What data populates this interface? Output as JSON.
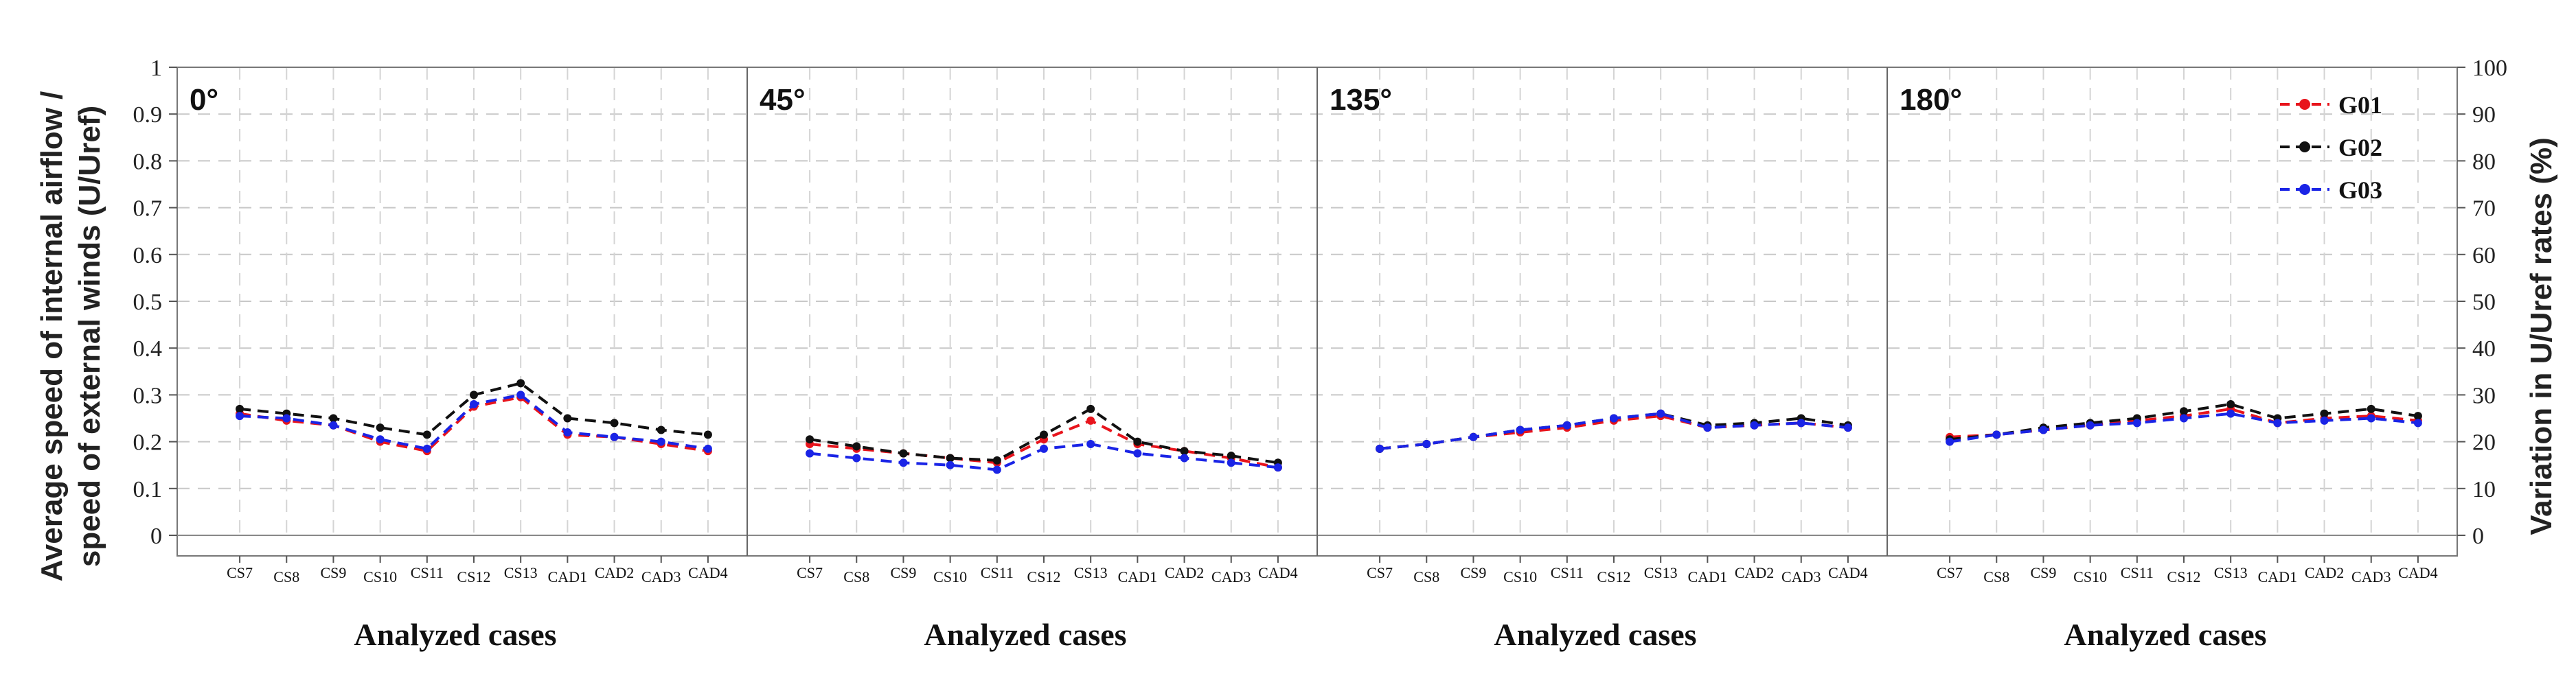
{
  "chart_data": {
    "type": "line",
    "title": "",
    "ylabel_left_line1": "Average speed of internal airflow /",
    "ylabel_left_line2": "speed of external winds  (U/Uref)",
    "ylabel_right": "Variation in U/Uref rates (%)",
    "ylim_left": [
      0,
      1
    ],
    "left_ticks": [
      "0",
      "0.1",
      "0.2",
      "0.3",
      "0.4",
      "0.5",
      "0.6",
      "0.7",
      "0.8",
      "0.9",
      "1"
    ],
    "ylim_right": [
      0,
      100
    ],
    "right_ticks": [
      "0",
      "10",
      "20",
      "30",
      "40",
      "50",
      "60",
      "70",
      "80",
      "90",
      "100"
    ],
    "categories": [
      "CS7",
      "CS8",
      "CS9",
      "CS10",
      "CS11",
      "CS12",
      "CS13",
      "CAD1",
      "CAD2",
      "CAD3",
      "CAD4"
    ],
    "legend": [
      {
        "name": "G01",
        "color": "#e8141c"
      },
      {
        "name": "G02",
        "color": "#111111"
      },
      {
        "name": "G03",
        "color": "#1a24e6"
      }
    ],
    "panels": [
      {
        "angle": "0°",
        "xlabel": "Analyzed cases",
        "series": [
          {
            "name": "G01",
            "values": [
              0.26,
              0.245,
              0.235,
              0.2,
              0.18,
              0.275,
              0.295,
              0.215,
              0.21,
              0.195,
              0.18
            ]
          },
          {
            "name": "G02",
            "values": [
              0.27,
              0.26,
              0.25,
              0.23,
              0.215,
              0.3,
              0.325,
              0.25,
              0.24,
              0.225,
              0.215
            ]
          },
          {
            "name": "G03",
            "values": [
              0.255,
              0.25,
              0.235,
              0.205,
              0.185,
              0.28,
              0.3,
              0.22,
              0.21,
              0.2,
              0.185
            ]
          }
        ]
      },
      {
        "angle": "45°",
        "xlabel": "Analyzed cases",
        "series": [
          {
            "name": "G01",
            "values": [
              0.195,
              0.185,
              0.175,
              0.165,
              0.155,
              0.205,
              0.245,
              0.195,
              0.18,
              0.165,
              0.145
            ]
          },
          {
            "name": "G02",
            "values": [
              0.205,
              0.19,
              0.175,
              0.165,
              0.16,
              0.215,
              0.27,
              0.2,
              0.18,
              0.17,
              0.155
            ]
          },
          {
            "name": "G03",
            "values": [
              0.175,
              0.165,
              0.155,
              0.15,
              0.14,
              0.185,
              0.195,
              0.175,
              0.165,
              0.155,
              0.145
            ]
          }
        ]
      },
      {
        "angle": "135°",
        "xlabel": "Analyzed cases",
        "series": [
          {
            "name": "G01",
            "values": [
              0.185,
              0.195,
              0.21,
              0.22,
              0.23,
              0.245,
              0.255,
              0.23,
              0.235,
              0.24,
              0.23
            ]
          },
          {
            "name": "G02",
            "values": [
              0.185,
              0.195,
              0.21,
              0.225,
              0.235,
              0.25,
              0.26,
              0.235,
              0.24,
              0.25,
              0.235
            ]
          },
          {
            "name": "G03",
            "values": [
              0.185,
              0.195,
              0.21,
              0.225,
              0.235,
              0.25,
              0.26,
              0.23,
              0.235,
              0.24,
              0.23
            ]
          }
        ]
      },
      {
        "angle": "180°",
        "xlabel": "Analyzed cases",
        "series": [
          {
            "name": "G01",
            "values": [
              0.21,
              0.215,
              0.225,
              0.235,
              0.245,
              0.255,
              0.27,
              0.24,
              0.25,
              0.255,
              0.245
            ]
          },
          {
            "name": "G02",
            "values": [
              0.205,
              0.215,
              0.23,
              0.24,
              0.25,
              0.265,
              0.28,
              0.25,
              0.26,
              0.27,
              0.255
            ]
          },
          {
            "name": "G03",
            "values": [
              0.2,
              0.215,
              0.225,
              0.235,
              0.24,
              0.25,
              0.26,
              0.24,
              0.245,
              0.25,
              0.24
            ]
          }
        ]
      }
    ]
  }
}
